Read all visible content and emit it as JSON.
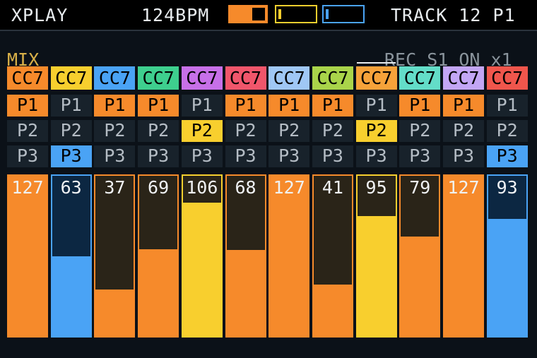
{
  "header": {
    "mode": "XPLAY",
    "tempo": "124BPM",
    "track": "TRACK 12 P1"
  },
  "mix_label": "MIX",
  "rec_status": "REC S1 ON x1",
  "slot_colors": [
    "#f68a2b",
    "#f8cf2e",
    "#4aa3f5"
  ],
  "channels": [
    {
      "label": "CC7",
      "color": "#f68a2b",
      "slots": [
        "P1",
        "P2",
        "P3"
      ],
      "active": 0,
      "value": 127
    },
    {
      "label": "CC7",
      "color": "#f8cf2e",
      "slots": [
        "P1",
        "P2",
        "P3"
      ],
      "active": 2,
      "value": 63
    },
    {
      "label": "CC7",
      "color": "#4aa3f5",
      "slots": [
        "P1",
        "P2",
        "P3"
      ],
      "active": 0,
      "value": 37
    },
    {
      "label": "CC7",
      "color": "#3ecf8e",
      "slots": [
        "P1",
        "P2",
        "P3"
      ],
      "active": 0,
      "value": 69
    },
    {
      "label": "CC7",
      "color": "#c770e8",
      "slots": [
        "P1",
        "P2",
        "P3"
      ],
      "active": 1,
      "value": 106
    },
    {
      "label": "CC7",
      "color": "#f0566b",
      "slots": [
        "P1",
        "P2",
        "P3"
      ],
      "active": 0,
      "value": 68
    },
    {
      "label": "CC7",
      "color": "#9fc7f5",
      "slots": [
        "P1",
        "P2",
        "P3"
      ],
      "active": 0,
      "value": 127
    },
    {
      "label": "CC7",
      "color": "#a9d44a",
      "slots": [
        "P1",
        "P2",
        "P3"
      ],
      "active": 0,
      "value": 41
    },
    {
      "label": "CC7",
      "color": "#f6a23a",
      "slots": [
        "P1",
        "P2",
        "P3"
      ],
      "active": 1,
      "value": 95
    },
    {
      "label": "CC7",
      "color": "#63ddc8",
      "slots": [
        "P1",
        "P2",
        "P3"
      ],
      "active": 0,
      "value": 79
    },
    {
      "label": "CC7",
      "color": "#c3a6f5",
      "slots": [
        "P1",
        "P2",
        "P3"
      ],
      "active": 0,
      "value": 127
    },
    {
      "label": "CC7",
      "color": "#f0564c",
      "slots": [
        "P1",
        "P2",
        "P3"
      ],
      "active": 2,
      "value": 93
    }
  ]
}
